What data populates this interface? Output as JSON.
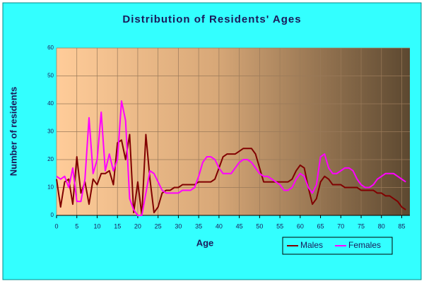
{
  "chart_data": {
    "type": "line",
    "title": "Distribution of Residents' Ages",
    "x_label": "Age",
    "y_label": "Number of residents",
    "x": [
      0,
      1,
      2,
      3,
      4,
      5,
      6,
      7,
      8,
      9,
      10,
      11,
      12,
      13,
      14,
      15,
      16,
      17,
      18,
      19,
      20,
      21,
      22,
      23,
      24,
      25,
      26,
      27,
      28,
      29,
      30,
      31,
      32,
      33,
      34,
      35,
      36,
      37,
      38,
      39,
      40,
      41,
      42,
      43,
      44,
      45,
      46,
      47,
      48,
      49,
      50,
      51,
      52,
      53,
      54,
      55,
      56,
      57,
      58,
      59,
      60,
      61,
      62,
      63,
      64,
      65,
      66,
      67,
      68,
      69,
      70,
      71,
      72,
      73,
      74,
      75,
      76,
      77,
      78,
      79,
      80,
      81,
      82,
      83,
      84,
      85,
      86
    ],
    "series": [
      {
        "name": "Males",
        "color": "#800000",
        "values": [
          13,
          3,
          12,
          13,
          4,
          21,
          8,
          12,
          4,
          13,
          11,
          15,
          15,
          16,
          11,
          26,
          27,
          20,
          29,
          1,
          12,
          0,
          29,
          13,
          1,
          3,
          8,
          9,
          9,
          10,
          10,
          11,
          11,
          11,
          11,
          12,
          12,
          12,
          12,
          13,
          17,
          21,
          22,
          22,
          22,
          23,
          24,
          24,
          24,
          22,
          17,
          12,
          12,
          12,
          12,
          12,
          12,
          12,
          13,
          16,
          18,
          17,
          10,
          4,
          6,
          12,
          14,
          13,
          11,
          11,
          11,
          10,
          10,
          10,
          10,
          9,
          9,
          9,
          9,
          8,
          8,
          7,
          7,
          6,
          5,
          3,
          2
        ]
      },
      {
        "name": "Females",
        "color": "#ff00ff",
        "values": [
          14,
          13,
          14,
          10,
          17,
          5,
          5,
          13,
          35,
          15,
          20,
          37,
          16,
          22,
          16,
          20,
          41,
          34,
          6,
          2,
          0,
          0,
          8,
          16,
          15,
          12,
          9,
          8,
          8,
          8,
          8,
          9,
          9,
          9,
          10,
          14,
          19,
          21,
          21,
          20,
          17,
          15,
          15,
          15,
          17,
          19,
          20,
          20,
          19,
          17,
          15,
          14,
          14,
          13,
          12,
          11,
          9,
          9,
          10,
          13,
          15,
          14,
          10,
          8,
          11,
          21,
          22,
          17,
          15,
          15,
          16,
          17,
          17,
          16,
          13,
          11,
          10,
          10,
          11,
          13,
          14,
          15,
          15,
          15,
          14,
          13,
          12
        ]
      }
    ],
    "xlim": [
      0,
      87
    ],
    "xticks": [
      0,
      5,
      10,
      15,
      20,
      25,
      30,
      35,
      40,
      45,
      50,
      55,
      60,
      65,
      70,
      75,
      80,
      85
    ],
    "ylim": [
      0,
      60
    ],
    "yticks": [
      0,
      10,
      20,
      30,
      40,
      50,
      60
    ],
    "grid": true,
    "legend": "bottom-right"
  }
}
